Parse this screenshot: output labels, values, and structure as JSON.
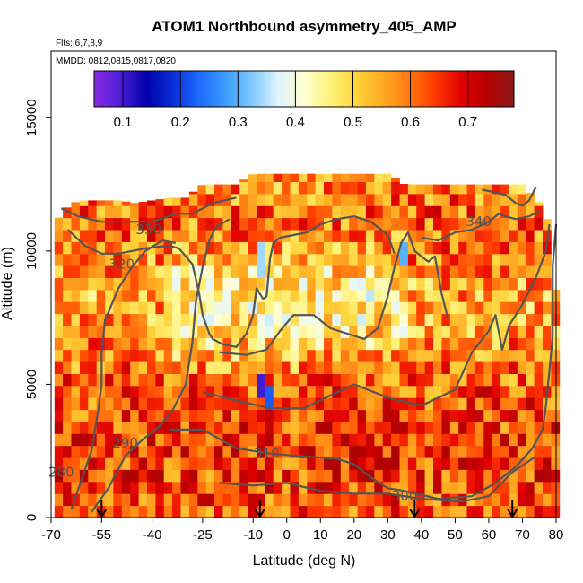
{
  "chart_data": {
    "type": "heatmap",
    "title": "ATOM1 Northbound asymmetry_405_AMP",
    "flights_label": "Flts: 6,7,8,9",
    "dates_label": "MMDD: 0812,0815,0817,0820",
    "xlabel": "Latitude (deg N)",
    "ylabel": "Altitude (m)",
    "xlim": [
      -70,
      80
    ],
    "ylim": [
      0,
      17500
    ],
    "x_ticks": [
      -70,
      -55,
      -40,
      -25,
      -10,
      0,
      10,
      20,
      30,
      40,
      50,
      60,
      70,
      80
    ],
    "x_tick_labels": [
      "-70",
      "-55",
      "-40",
      "-25",
      "-10",
      "0",
      "10",
      "20",
      "30",
      "40",
      "50",
      "60",
      "70",
      "80"
    ],
    "y_ticks": [
      0,
      5000,
      10000,
      15000
    ],
    "y_tick_labels": [
      "0",
      "5000",
      "10000",
      "15000"
    ],
    "colorbar": {
      "range": [
        0.05,
        0.78
      ],
      "ticks": [
        0.1,
        0.2,
        0.3,
        0.4,
        0.5,
        0.6,
        0.7
      ],
      "tick_labels": [
        "0.1",
        "0.2",
        "0.3",
        "0.4",
        "0.5",
        "0.6",
        "0.7"
      ],
      "colors": [
        "#8a2be2",
        "#4b1fd8",
        "#0000a8",
        "#0a2fd6",
        "#1e6bff",
        "#3a9bff",
        "#7ec8ff",
        "#dff4ff",
        "#ffffd4",
        "#fff27a",
        "#ffd33a",
        "#ffaa22",
        "#ff7a10",
        "#ff3a00",
        "#e00000",
        "#b40000",
        "#8a1a1a"
      ]
    },
    "grid": {
      "lat_min": -69,
      "lat_step": 2.5,
      "lat_count": 60,
      "alt_min": 0,
      "alt_step": 450,
      "alt_count": 29,
      "value_range": [
        0.28,
        0.74
      ]
    },
    "envelope": [
      [
        -69,
        11000
      ],
      [
        -67,
        11400
      ],
      [
        -64,
        11800
      ],
      [
        -60,
        11900
      ],
      [
        -55,
        11900
      ],
      [
        -50,
        11900
      ],
      [
        -45,
        11800
      ],
      [
        -40,
        11900
      ],
      [
        -35,
        12000
      ],
      [
        -30,
        12000
      ],
      [
        -25,
        12500
      ],
      [
        -20,
        12500
      ],
      [
        -15,
        12500
      ],
      [
        -10,
        12900
      ],
      [
        -5,
        12900
      ],
      [
        0,
        12900
      ],
      [
        5,
        12900
      ],
      [
        10,
        12900
      ],
      [
        15,
        12900
      ],
      [
        20,
        12900
      ],
      [
        25,
        12900
      ],
      [
        30,
        12900
      ],
      [
        35,
        12500
      ],
      [
        40,
        12500
      ],
      [
        45,
        12500
      ],
      [
        50,
        12500
      ],
      [
        55,
        12500
      ],
      [
        60,
        12500
      ],
      [
        65,
        12500
      ],
      [
        70,
        12500
      ],
      [
        75,
        11800
      ],
      [
        78,
        11000
      ],
      [
        80,
        8200
      ]
    ],
    "low_anomalies": [
      {
        "lat": -8,
        "alt": 4800,
        "value": 0.1
      },
      {
        "lat": -6,
        "alt": 4500,
        "value": 0.22
      },
      {
        "lat": -8,
        "alt": 9700,
        "value": 0.34
      },
      {
        "lat": 35,
        "alt": 9900,
        "value": 0.3
      }
    ],
    "contours": [
      {
        "label": "280",
        "label_lat": -67,
        "label_alt": 1700,
        "points": [
          [
            -64,
            300
          ],
          [
            -61,
            1400
          ],
          [
            -58,
            2500
          ],
          [
            -56,
            4000
          ],
          [
            -55,
            5000
          ],
          [
            -55,
            6200
          ],
          [
            -54,
            7400
          ],
          [
            -50,
            8600
          ],
          [
            -46,
            9400
          ],
          [
            -42,
            10000
          ],
          [
            -37,
            10400
          ],
          [
            -33,
            10300
          ]
        ]
      },
      {
        "label": "290",
        "label_lat": -48,
        "label_alt": 2800,
        "points": [
          [
            -58,
            200
          ],
          [
            -53,
            1100
          ],
          [
            -48,
            2300
          ],
          [
            -43,
            2900
          ],
          [
            -38,
            3400
          ],
          [
            -34,
            4000
          ],
          [
            -30,
            5000
          ],
          [
            -28,
            6600
          ],
          [
            -27,
            8100
          ],
          [
            -25,
            9400
          ],
          [
            -23,
            10400
          ],
          [
            -21,
            10900
          ],
          [
            -17,
            11200
          ]
        ]
      },
      {
        "label": "300",
        "label_lat": 35,
        "label_alt": 800,
        "points": [
          [
            -20,
            1300
          ],
          [
            -10,
            1200
          ],
          [
            0,
            1300
          ],
          [
            10,
            1000
          ],
          [
            20,
            900
          ],
          [
            30,
            900
          ],
          [
            40,
            700
          ],
          [
            52,
            600
          ],
          [
            60,
            800
          ],
          [
            67,
            1700
          ],
          [
            74,
            2300
          ]
        ]
      },
      {
        "label": "310",
        "label_lat": -6,
        "label_alt": 2400,
        "points": [
          [
            -35,
            3300
          ],
          [
            -25,
            3300
          ],
          [
            -15,
            2600
          ],
          [
            -5,
            2400
          ],
          [
            5,
            2300
          ],
          [
            15,
            2200
          ],
          [
            20,
            2000
          ],
          [
            25,
            1500
          ],
          [
            30,
            1100
          ],
          [
            35,
            1000
          ],
          [
            45,
            700
          ],
          [
            55,
            800
          ],
          [
            62,
            1300
          ],
          [
            68,
            1900
          ],
          [
            73,
            2600
          ],
          [
            76,
            3300
          ],
          [
            77,
            4200
          ],
          [
            78,
            5500
          ],
          [
            79,
            6800
          ],
          [
            79,
            8100
          ],
          [
            79,
            9400
          ],
          [
            80,
            11000
          ]
        ]
      },
      {
        "label": "",
        "label_lat": 0,
        "label_alt": 0,
        "points": [
          [
            -25,
            4700
          ],
          [
            -15,
            4400
          ],
          [
            -5,
            4100
          ],
          [
            5,
            4100
          ],
          [
            15,
            4700
          ],
          [
            20,
            5000
          ],
          [
            30,
            4500
          ],
          [
            40,
            4200
          ],
          [
            50,
            4800
          ],
          [
            55,
            6200
          ],
          [
            60,
            7000
          ],
          [
            62,
            7600
          ],
          [
            64,
            6300
          ],
          [
            66,
            7200
          ],
          [
            70,
            8000
          ],
          [
            74,
            9000
          ],
          [
            77,
            10000
          ],
          [
            78,
            11000
          ]
        ]
      },
      {
        "label": "",
        "label_lat": 0,
        "label_alt": 0,
        "points": [
          [
            -20,
            6200
          ],
          [
            -12,
            6100
          ],
          [
            -6,
            6300
          ],
          [
            -2,
            7000
          ],
          [
            2,
            7600
          ],
          [
            8,
            7600
          ],
          [
            13,
            7100
          ],
          [
            18,
            6900
          ],
          [
            23,
            6700
          ],
          [
            27,
            7100
          ],
          [
            30,
            8300
          ],
          [
            32,
            9400
          ],
          [
            34,
            10300
          ],
          [
            36,
            10700
          ],
          [
            38,
            10000
          ],
          [
            42,
            9600
          ],
          [
            44,
            9800
          ],
          [
            46,
            8400
          ],
          [
            48,
            7400
          ]
        ]
      },
      {
        "label": "320",
        "label_lat": -49,
        "label_alt": 9500,
        "points": [
          [
            -65,
            10800
          ],
          [
            -60,
            10200
          ],
          [
            -55,
            9900
          ],
          [
            -50,
            9900
          ],
          [
            -42,
            10100
          ],
          [
            -35,
            10200
          ],
          [
            -32,
            10100
          ],
          [
            -28,
            9500
          ],
          [
            -26,
            8400
          ],
          [
            -25,
            7600
          ],
          [
            -23,
            6900
          ],
          [
            -22,
            6700
          ],
          [
            -19,
            6500
          ],
          [
            -15,
            6400
          ],
          [
            -12,
            6900
          ],
          [
            -10,
            7600
          ],
          [
            -9,
            8600
          ],
          [
            -7,
            8200
          ],
          [
            -6,
            8300
          ],
          [
            -5,
            9700
          ],
          [
            -4,
            10300
          ],
          [
            -2,
            10500
          ],
          [
            2,
            10600
          ],
          [
            6,
            10700
          ],
          [
            10,
            11000
          ],
          [
            15,
            11200
          ],
          [
            20,
            11300
          ],
          [
            25,
            11100
          ],
          [
            30,
            10600
          ],
          [
            32,
            9900
          ]
        ]
      },
      {
        "label": "330",
        "label_lat": -41,
        "label_alt": 10800,
        "points": [
          [
            -67,
            11600
          ],
          [
            -62,
            11300
          ],
          [
            -55,
            11100
          ],
          [
            -48,
            11100
          ],
          [
            -40,
            11100
          ],
          [
            -33,
            11400
          ],
          [
            -28,
            11400
          ],
          [
            -22,
            11800
          ],
          [
            -15,
            12000
          ]
        ]
      },
      {
        "label": "340",
        "label_lat": 57,
        "label_alt": 11100,
        "points": [
          [
            40,
            10500
          ],
          [
            45,
            10400
          ],
          [
            50,
            10700
          ],
          [
            55,
            10800
          ],
          [
            60,
            11100
          ],
          [
            63,
            11400
          ],
          [
            65,
            11300
          ],
          [
            68,
            11200
          ],
          [
            72,
            11300
          ],
          [
            75,
            11500
          ]
        ]
      },
      {
        "label": "",
        "label_lat": 0,
        "label_alt": 0,
        "points": [
          [
            58,
            12300
          ],
          [
            62,
            12200
          ],
          [
            65,
            12100
          ],
          [
            68,
            11800
          ],
          [
            70,
            11700
          ],
          [
            72,
            11900
          ],
          [
            74,
            12400
          ]
        ]
      }
    ],
    "arrow_latitudes": [
      -55,
      -8,
      38,
      67
    ]
  }
}
